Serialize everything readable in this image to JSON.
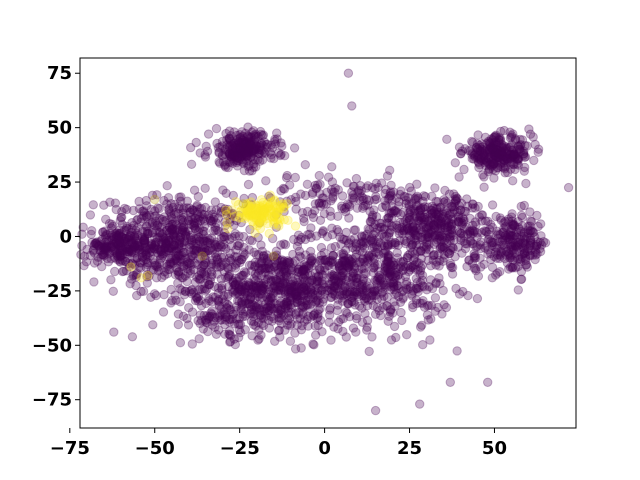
{
  "chart_data": {
    "type": "scatter",
    "title": "",
    "xlabel": "",
    "ylabel": "",
    "xlim": [
      -72,
      74
    ],
    "ylim": [
      -88,
      82
    ],
    "xticks": [
      -75,
      -50,
      -25,
      0,
      25,
      50
    ],
    "yticks": [
      -75,
      -50,
      -25,
      0,
      25,
      50,
      75
    ],
    "xtick_labels": [
      "−75",
      "−50",
      "−25",
      "0",
      "25",
      "50"
    ],
    "ytick_labels": [
      "−75",
      "−50",
      "−25",
      "0",
      "25",
      "50",
      "75"
    ],
    "grid": false,
    "legend": "none",
    "marker_alpha": 0.3,
    "colors": {
      "class_0": "#440154",
      "class_1": "#fde725",
      "class_mid": "#b5a022"
    },
    "series": [
      {
        "class": 0,
        "color": "#440154",
        "clusters": [
          {
            "label_hint": "left-lobe",
            "center": [
              -45,
              -2
            ],
            "spread": [
              11,
              10
            ],
            "count": 650
          },
          {
            "label_hint": "far-left-tail",
            "center": [
              -62,
              -5
            ],
            "spread": [
              5,
              4
            ],
            "count": 120
          },
          {
            "label_hint": "center-lower",
            "center": [
              -18,
              -25
            ],
            "spread": [
              12,
              10
            ],
            "count": 600
          },
          {
            "label_hint": "center-right",
            "center": [
              12,
              -18
            ],
            "spread": [
              13,
              12
            ],
            "count": 650
          },
          {
            "label_hint": "right-body",
            "center": [
              32,
              5
            ],
            "spread": [
              11,
              8
            ],
            "count": 420
          },
          {
            "label_hint": "top-left-cluster",
            "center": [
              -24,
              40
            ],
            "spread": [
              5,
              4
            ],
            "count": 260
          },
          {
            "label_hint": "top-right-cluster",
            "center": [
              51,
              38
            ],
            "spread": [
              5,
              4
            ],
            "count": 260
          },
          {
            "label_hint": "far-right-lobe",
            "center": [
              56,
              -4
            ],
            "spread": [
              5,
              6
            ],
            "count": 200
          },
          {
            "label_hint": "upper-middle-sparse",
            "center": [
              5,
              18
            ],
            "spread": [
              12,
              5
            ],
            "count": 130
          },
          {
            "label_hint": "lower-left-sparse",
            "center": [
              -32,
              -38
            ],
            "spread": [
              4,
              3
            ],
            "count": 40
          }
        ],
        "outliers": [
          [
            7,
            75
          ],
          [
            8,
            60
          ],
          [
            15,
            -80
          ],
          [
            28,
            -77
          ],
          [
            37,
            -67
          ],
          [
            48,
            -67
          ],
          [
            -44,
            -27
          ]
        ]
      },
      {
        "class": 1,
        "color": "#fde725",
        "clusters": [
          {
            "label_hint": "yellow-cluster",
            "center": [
              -19,
              11
            ],
            "spread": [
              4,
              3
            ],
            "count": 140
          }
        ],
        "outliers": [
          [
            -54,
            -19
          ],
          [
            -57,
            -14
          ],
          [
            -52,
            -18
          ],
          [
            -16,
            19
          ],
          [
            -11,
            15
          ]
        ]
      },
      {
        "class": 2,
        "color": "#b5a022",
        "clusters": [],
        "outliers": [
          [
            -24,
            15
          ],
          [
            -50,
            17
          ],
          [
            -15,
            -9
          ],
          [
            -36,
            -9
          ]
        ]
      }
    ]
  }
}
